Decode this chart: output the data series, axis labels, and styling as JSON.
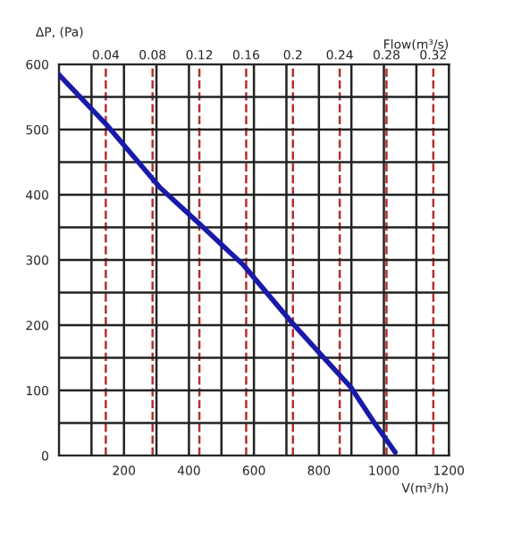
{
  "chart_data": {
    "type": "line",
    "ylabel": "ΔP, (Pa)",
    "xlabel": "V(m³/h)",
    "x2label": "Flow(m³/s)",
    "series": [
      {
        "color": "#1a1aa8",
        "x": [
          0,
          147,
          311,
          431,
          568,
          715,
          806,
          898,
          971,
          1035
        ],
        "values": [
          584,
          507,
          411,
          356,
          292,
          205,
          155,
          105,
          50,
          5
        ]
      }
    ],
    "xlim": [
      0,
      1200
    ],
    "ylim": [
      0,
      600
    ],
    "xticks": [
      {
        "value": 100,
        "label": null
      },
      200,
      {
        "value": 300,
        "label": null
      },
      400,
      {
        "value": 500,
        "label": null
      },
      600,
      {
        "value": 700,
        "label": null
      },
      800,
      {
        "value": 900,
        "label": null
      },
      1000,
      {
        "value": 1100,
        "label": null
      },
      1200
    ],
    "yticks": [
      0,
      {
        "value": 50,
        "label": null
      },
      100,
      {
        "value": 150,
        "label": null
      },
      200,
      {
        "value": 250,
        "label": null
      },
      300,
      {
        "value": 350,
        "label": null
      },
      400,
      {
        "value": 450,
        "label": null
      },
      500,
      {
        "value": 550,
        "label": null
      },
      600
    ],
    "x2lim": [
      0,
      0.3333
    ],
    "x2ticks": [
      0.04,
      0.08,
      0.12,
      0.16,
      0.2,
      0.24,
      0.28,
      0.32
    ],
    "grid": true,
    "line_style": "solid",
    "marker": "none",
    "legend": false
  }
}
